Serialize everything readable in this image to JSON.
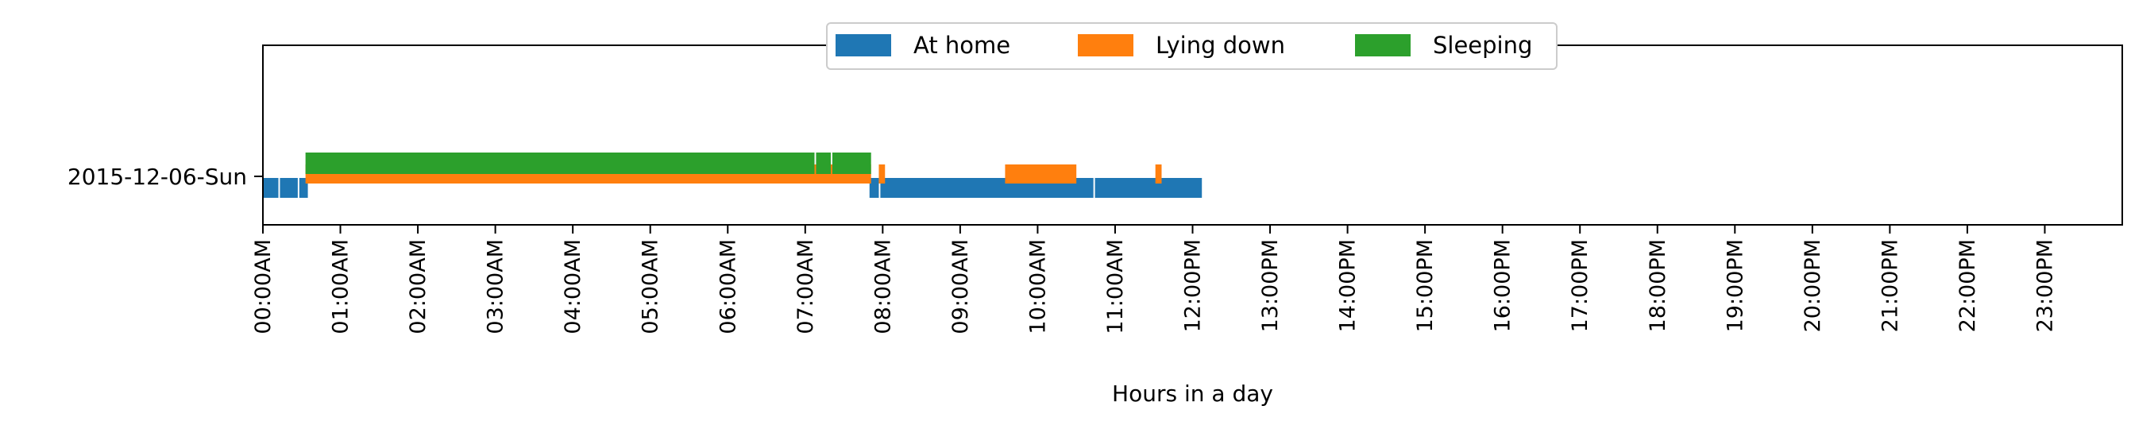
{
  "chart_data": {
    "type": "timeline",
    "xlabel": "Hours in a day",
    "xlim": [
      0,
      24
    ],
    "x_ticks": [
      "00:00AM",
      "01:00AM",
      "02:00AM",
      "03:00AM",
      "04:00AM",
      "05:00AM",
      "06:00AM",
      "07:00AM",
      "08:00AM",
      "09:00AM",
      "10:00AM",
      "11:00AM",
      "12:00PM",
      "13:00PM",
      "14:00PM",
      "15:00PM",
      "16:00PM",
      "17:00PM",
      "18:00PM",
      "19:00PM",
      "20:00PM",
      "21:00PM",
      "22:00PM",
      "23:00PM"
    ],
    "categories": [
      "2015-12-06-Sun"
    ],
    "legend_position": "top-center",
    "grid": false,
    "series": [
      {
        "name": "At home",
        "color": "#1f77b4",
        "segments": [
          [
            0.0,
            0.2
          ],
          [
            0.22,
            0.45
          ],
          [
            0.47,
            0.58
          ],
          [
            7.83,
            7.95
          ],
          [
            7.97,
            10.72
          ],
          [
            10.74,
            12.12
          ]
        ]
      },
      {
        "name": "Lying down",
        "color": "#ff7f0e",
        "segments": [
          [
            0.55,
            7.85
          ],
          [
            7.95,
            8.03
          ],
          [
            9.58,
            10.5
          ],
          [
            11.52,
            11.6
          ]
        ]
      },
      {
        "name": "Sleeping",
        "color": "#2ca02c",
        "segments": [
          [
            0.55,
            7.12
          ],
          [
            7.14,
            7.33
          ],
          [
            7.35,
            7.85
          ]
        ]
      }
    ]
  }
}
